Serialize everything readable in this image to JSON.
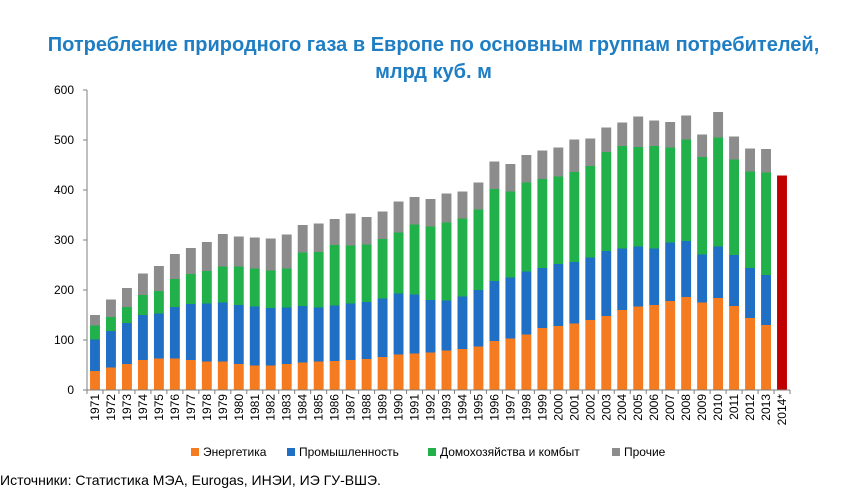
{
  "title_line1": "Потребление природного газа в Европе по основным группам потребителей,",
  "title_line2": "млрд куб. м",
  "source": "Источники: Статистика МЭА, Eurogas, ИНЭИ, ИЭ ГУ-ВШЭ.",
  "chart_data": {
    "type": "bar",
    "stacked": true,
    "ylim": [
      0,
      600
    ],
    "yticks": [
      0,
      100,
      200,
      300,
      400,
      500,
      600
    ],
    "categories": [
      "1971",
      "1972",
      "1973",
      "1974",
      "1975",
      "1976",
      "1977",
      "1978",
      "1979",
      "1980",
      "1981",
      "1982",
      "1983",
      "1984",
      "1985",
      "1986",
      "1987",
      "1988",
      "1989",
      "1990",
      "1991",
      "1992",
      "1993",
      "1994",
      "1995",
      "1996",
      "1997",
      "1998",
      "1999",
      "2000",
      "2001",
      "2002",
      "2003",
      "2004",
      "2005",
      "2006",
      "2007",
      "2008",
      "2009",
      "2010",
      "2011",
      "2012",
      "2013",
      "2014*"
    ],
    "series": [
      {
        "name": "Энергетика",
        "color": "#f47b20",
        "values": [
          38,
          45,
          52,
          60,
          63,
          63,
          60,
          57,
          57,
          52,
          49,
          49,
          52,
          55,
          57,
          58,
          60,
          62,
          66,
          71,
          73,
          75,
          79,
          82,
          87,
          98,
          103,
          111,
          124,
          128,
          133,
          140,
          148,
          160,
          167,
          170,
          178,
          186,
          175,
          184,
          168,
          144,
          130,
          null
        ]
      },
      {
        "name": "Промышленность",
        "color": "#1f6fc4",
        "values": [
          63,
          73,
          82,
          90,
          90,
          103,
          112,
          116,
          118,
          118,
          118,
          115,
          113,
          113,
          108,
          111,
          113,
          114,
          117,
          122,
          118,
          105,
          100,
          105,
          113,
          120,
          122,
          126,
          120,
          124,
          123,
          125,
          130,
          123,
          120,
          113,
          117,
          112,
          96,
          103,
          102,
          100,
          100,
          null
        ]
      },
      {
        "name": "Домохозяйства и комбыт",
        "color": "#20b14a",
        "values": [
          28,
          28,
          32,
          40,
          45,
          56,
          60,
          65,
          72,
          77,
          76,
          75,
          78,
          107,
          111,
          121,
          116,
          115,
          119,
          122,
          140,
          147,
          156,
          156,
          161,
          184,
          172,
          178,
          178,
          175,
          180,
          183,
          198,
          205,
          199,
          205,
          190,
          203,
          195,
          218,
          191,
          193,
          205,
          null
        ]
      },
      {
        "name": "Прочие",
        "color": "#8c8c8c",
        "values": [
          21,
          35,
          38,
          43,
          50,
          50,
          52,
          58,
          65,
          60,
          62,
          64,
          68,
          55,
          57,
          52,
          64,
          55,
          55,
          62,
          55,
          55,
          58,
          54,
          54,
          55,
          55,
          55,
          57,
          58,
          65,
          55,
          49,
          47,
          61,
          51,
          51,
          48,
          45,
          51,
          46,
          46,
          47,
          null
        ]
      }
    ],
    "total_2014": 429,
    "total_2014_color": "#c00000"
  }
}
